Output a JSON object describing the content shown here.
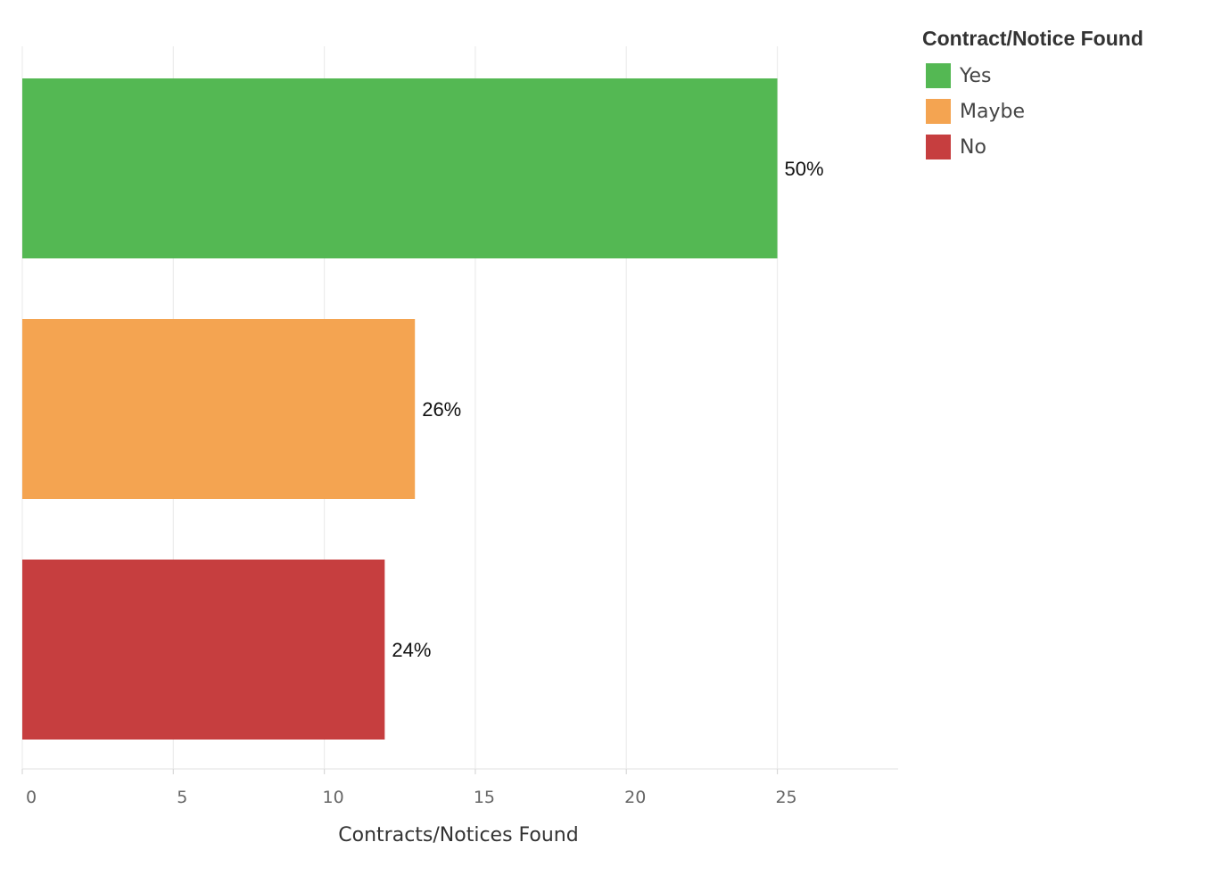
{
  "chart_data": {
    "type": "bar",
    "orientation": "horizontal",
    "categories": [
      "Yes",
      "Maybe",
      "No"
    ],
    "values": [
      25,
      13,
      12
    ],
    "data_labels": [
      "50%",
      "26%",
      "24%"
    ],
    "colors": [
      "#54b853",
      "#f4a451",
      "#c63e3f"
    ],
    "xlabel": "Contracts/Notices Found",
    "xlim": [
      0,
      29
    ],
    "xticks": [
      0,
      5,
      10,
      15,
      20,
      25
    ],
    "grid": "vertical",
    "legend": {
      "title": "Contract/Notice Found",
      "placement": "top-right",
      "items": [
        "Yes",
        "Maybe",
        "No"
      ]
    }
  }
}
